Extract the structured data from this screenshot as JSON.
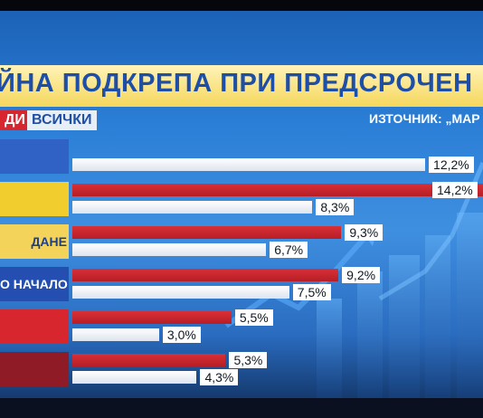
{
  "header": {
    "title": "ЙНА ПОДКРЕПА ПРИ ПРЕДСРОЧЕН",
    "legend_red_label": "ДИ",
    "legend_all_label": "ВСИЧКИ",
    "source": "ИЗТОЧНИК: „МАР"
  },
  "colors": {
    "series_red": "#c9252c",
    "series_all": "#eef3f9",
    "title_band": "#f5d75c",
    "title_text": "#1e4fa8"
  },
  "chart_data": {
    "type": "bar",
    "orientation": "horizontal",
    "title": "ЙНА ПОДКРЕПА ПРИ ПРЕДСРОЧЕН",
    "categories": [
      "",
      "",
      "ДАНЕ",
      "О НАЧАЛО",
      "",
      ""
    ],
    "category_colors": [
      "#2f62c4",
      "#f1cd2e",
      "#f3d35a",
      "#244fb0",
      "#d8262e",
      "#8e1b26"
    ],
    "series": [
      {
        "name": "ДИ",
        "values": [
          null,
          14.2,
          9.3,
          9.2,
          5.5,
          5.3
        ],
        "labels": [
          "",
          "14,2%",
          "9,3%",
          "9,2%",
          "5,5%",
          "5,3%"
        ]
      },
      {
        "name": "ВСИЧКИ",
        "values": [
          12.2,
          8.3,
          6.7,
          7.5,
          3.0,
          4.3
        ],
        "labels": [
          "12,2%",
          "8,3%",
          "6,7%",
          "7,5%",
          "3,0%",
          "4,3%"
        ]
      }
    ],
    "xlim": [
      0,
      14.2
    ],
    "grid": false,
    "legend": "top-left"
  }
}
